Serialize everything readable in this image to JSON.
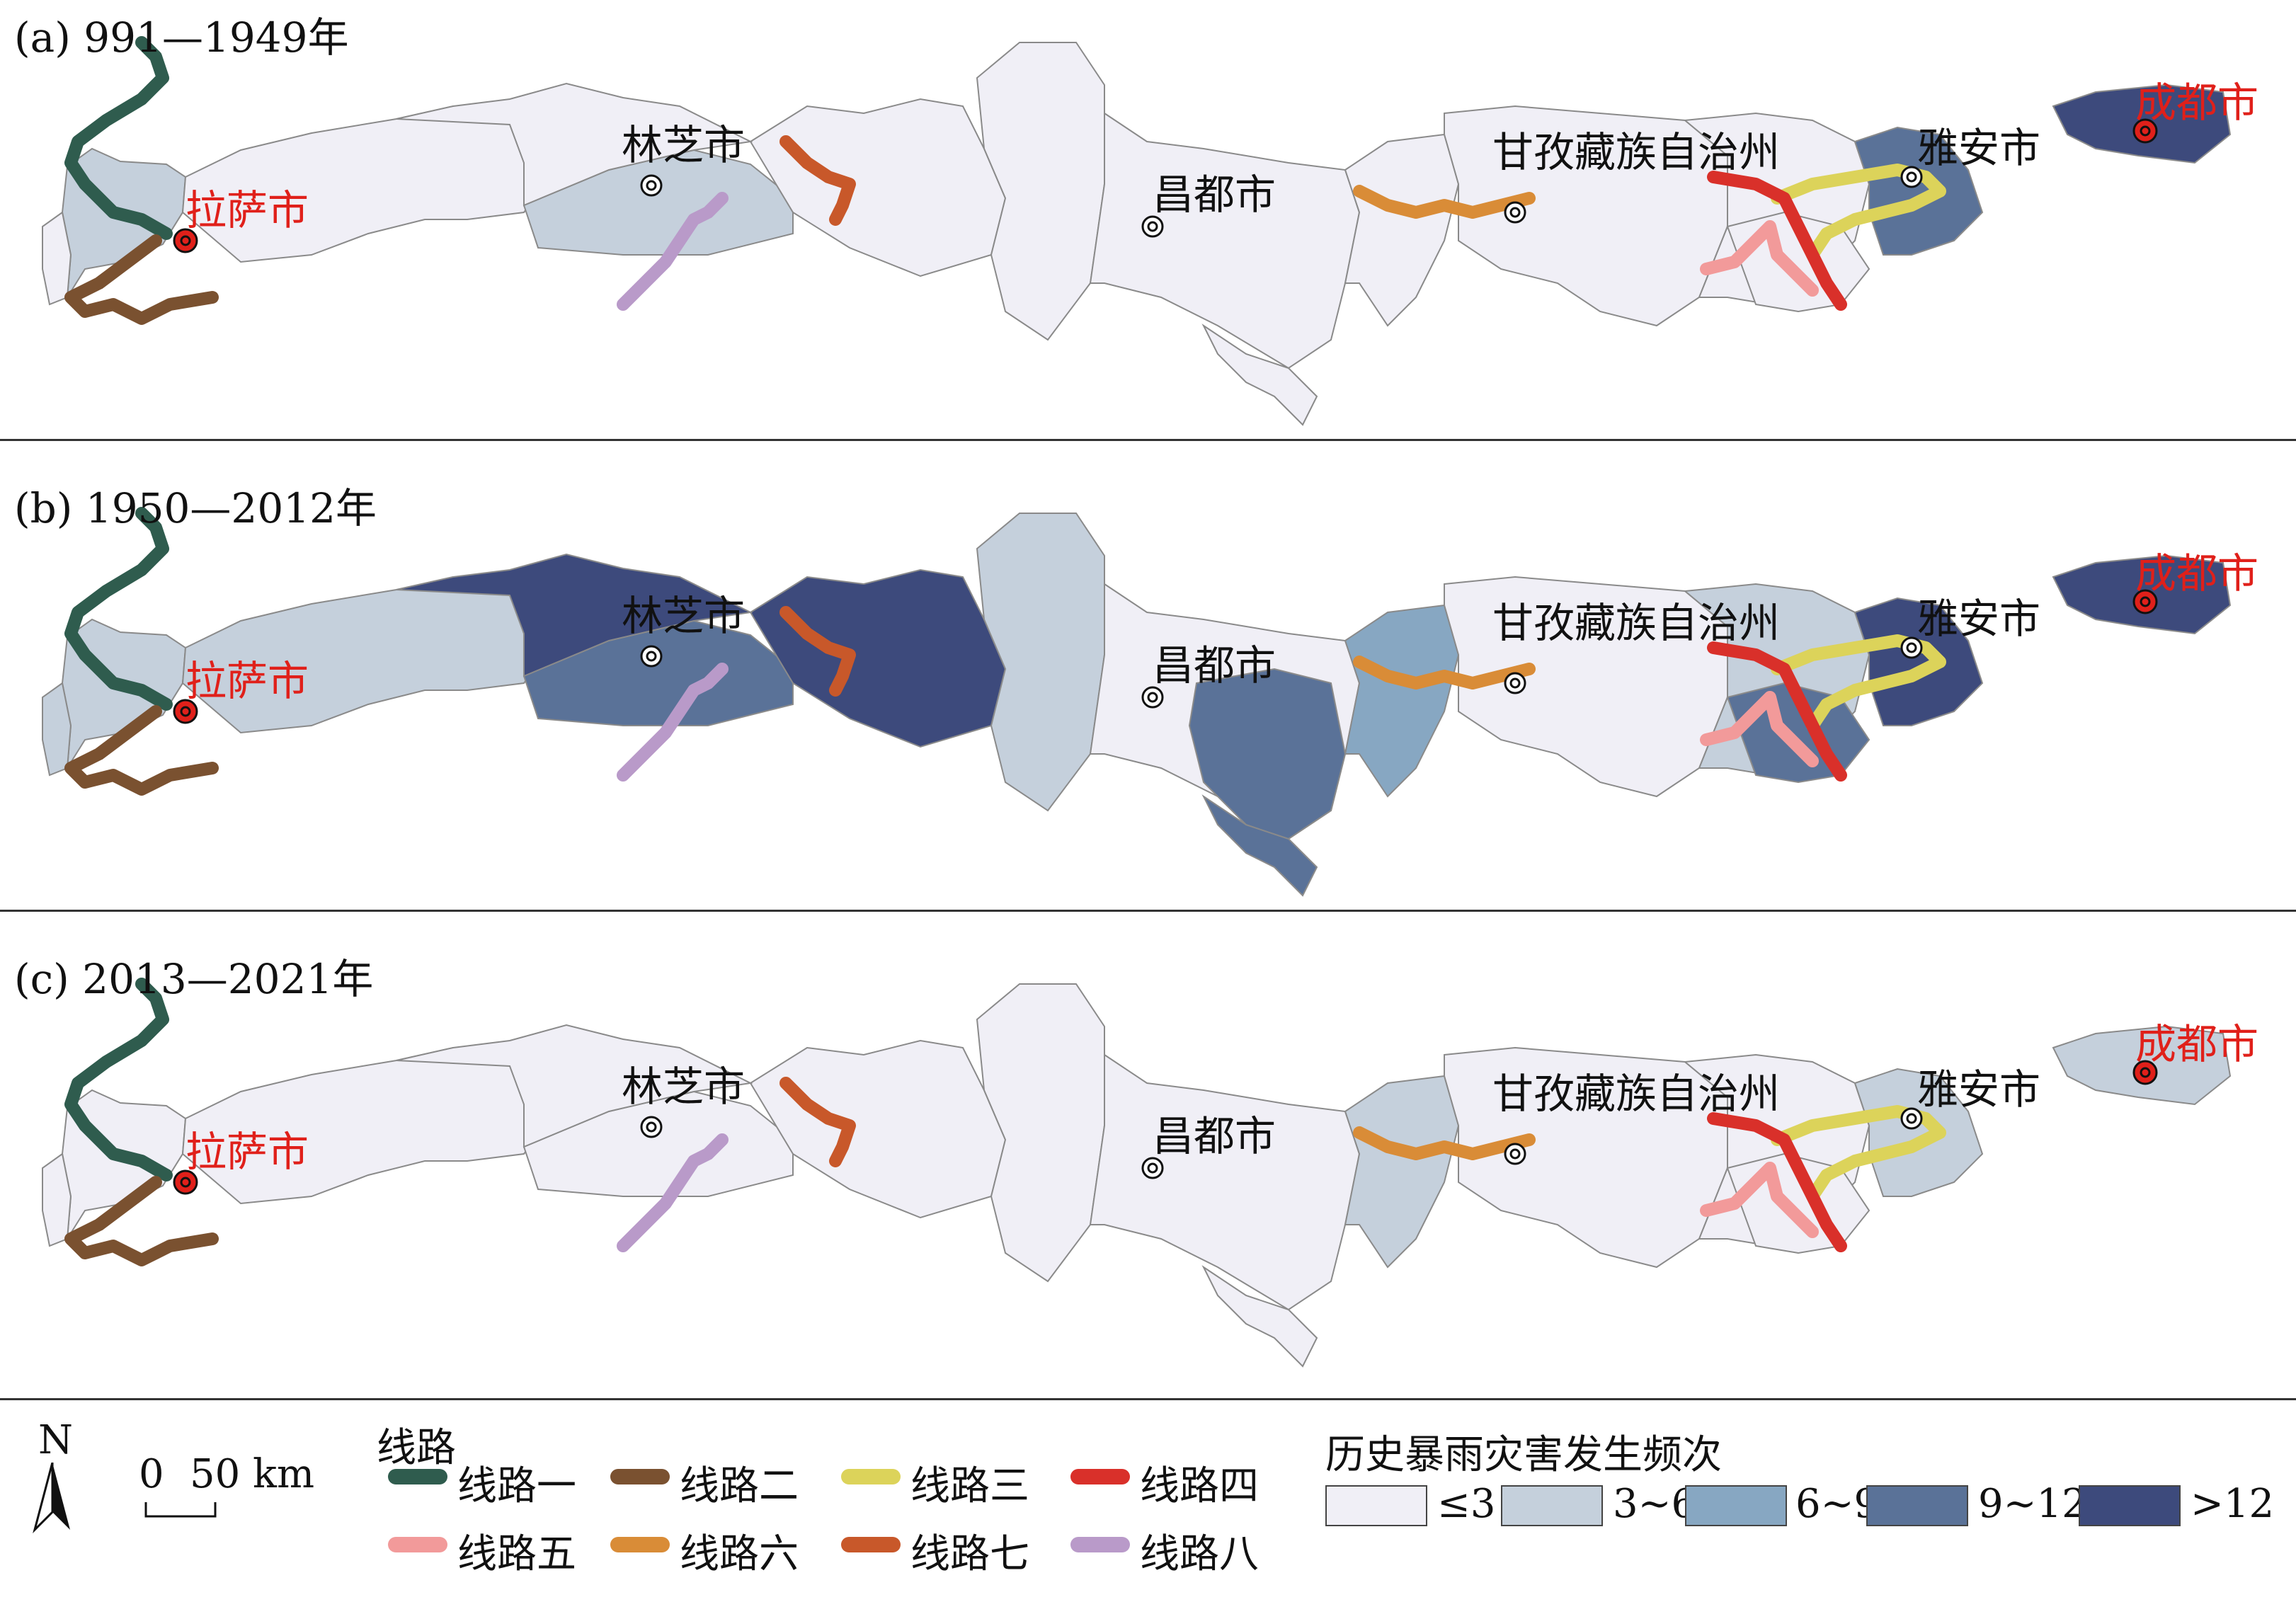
{
  "panels": [
    {
      "title": "(a) 991—1949年"
    },
    {
      "title": "(b) 1950—2012年"
    },
    {
      "title": "(c) 2013—2021年"
    }
  ],
  "cities": {
    "lhasa": "拉萨市",
    "nyingchi": "林芝市",
    "chamdo": "昌都市",
    "garze": "甘孜藏族自治州",
    "yaan": "雅安市",
    "chengdu": "成都市"
  },
  "legend": {
    "north": "N",
    "scale_zero": "0",
    "scale_value": "50 km",
    "routes_title": "线路",
    "routes": [
      {
        "label": "线路一",
        "color": "#2f5c4e"
      },
      {
        "label": "线路二",
        "color": "#7a5130"
      },
      {
        "label": "线路三",
        "color": "#dcd35a"
      },
      {
        "label": "线路四",
        "color": "#d9302a"
      },
      {
        "label": "线路五",
        "color": "#f29a9a"
      },
      {
        "label": "线路六",
        "color": "#d98c37"
      },
      {
        "label": "线路七",
        "color": "#c8582a"
      },
      {
        "label": "线路八",
        "color": "#b99ac9"
      }
    ],
    "freq_title": "历史暴雨灾害发生频次",
    "classes": [
      {
        "label": "≤3",
        "color": "#f0eff6"
      },
      {
        "label": "3~6",
        "color": "#c5d0dc"
      },
      {
        "label": "6~9",
        "color": "#87a7c2"
      },
      {
        "label": "9~12",
        "color": "#5a7298"
      },
      {
        "label": ">12",
        "color": "#3d4a7c"
      }
    ]
  }
}
